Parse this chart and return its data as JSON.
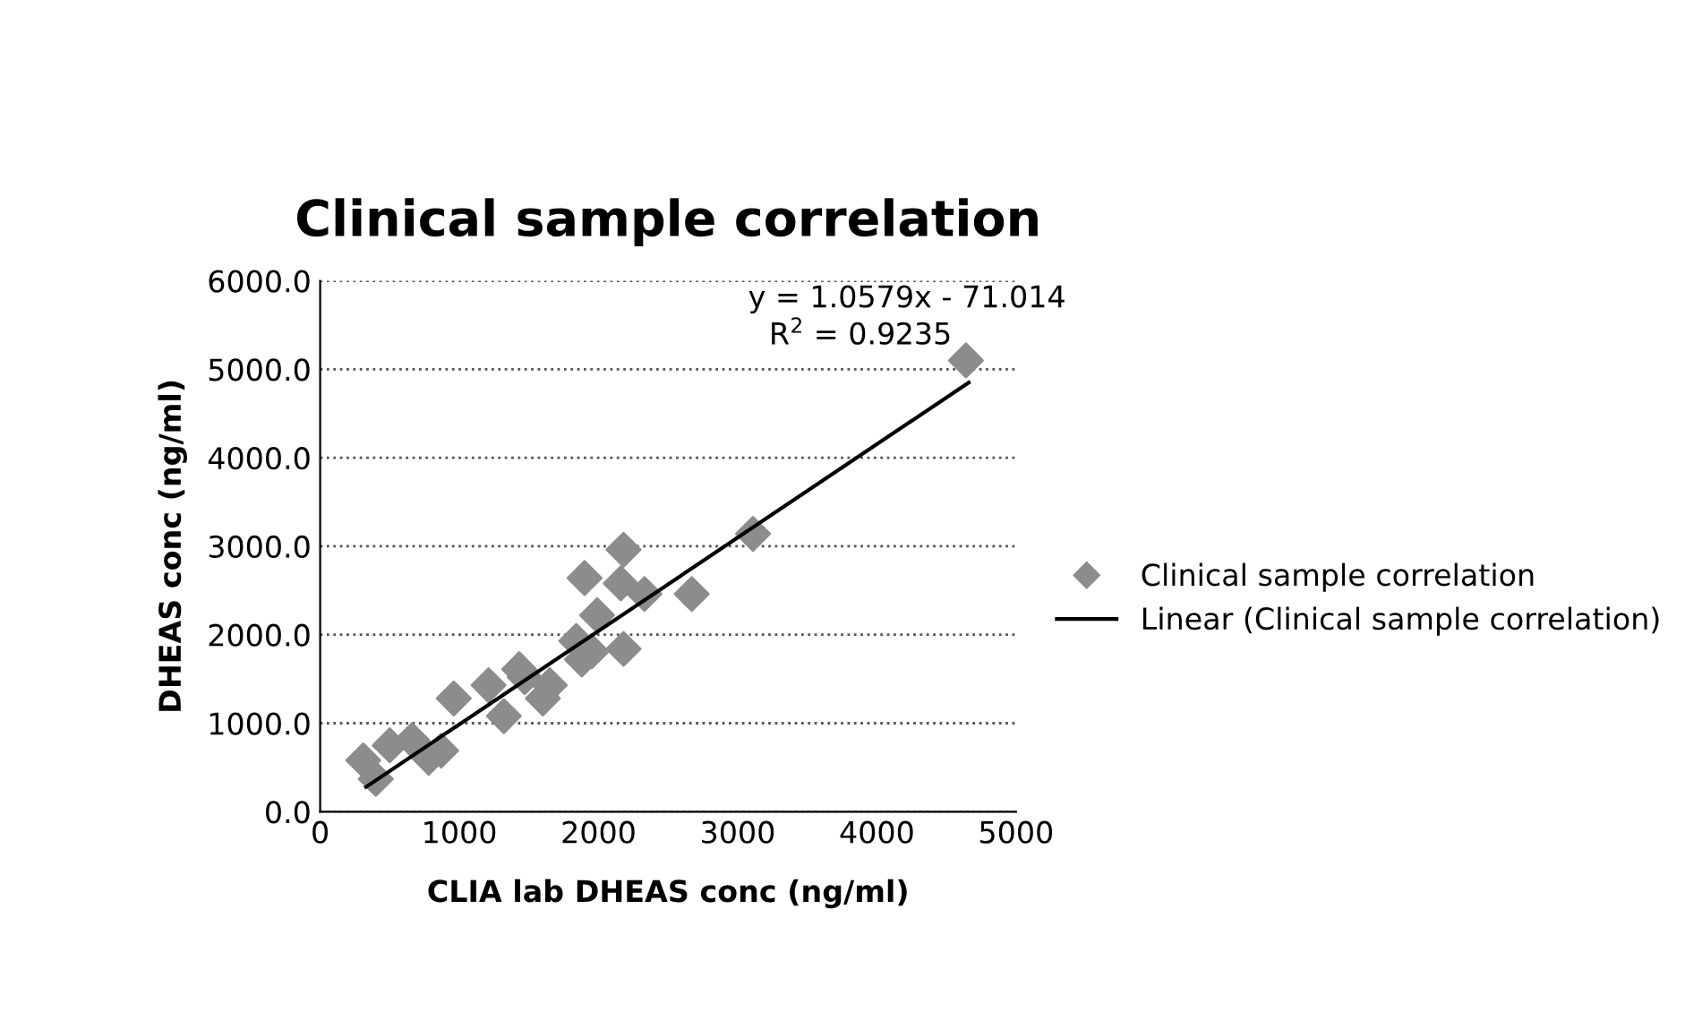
{
  "chart_data": {
    "type": "scatter",
    "title": "Clinical sample correlation",
    "xlabel": "CLIA lab DHEAS conc (ng/ml)",
    "ylabel": "DHEAS conc (ng/ml)",
    "annotations": [
      "y = 1.0579x - 71.014",
      "R$^{2}$ = 0.9235"
    ],
    "xlim": [
      0,
      5000
    ],
    "xticks": [
      0,
      1000,
      2000,
      3000,
      4000,
      5000
    ],
    "ylim": [
      0,
      6000
    ],
    "yticks": [
      {
        "value": 0,
        "label": "0.0"
      },
      {
        "value": 1000,
        "label": "1000.0"
      },
      {
        "value": 2000,
        "label": "2000.0"
      },
      {
        "value": 3000,
        "label": "3000.0"
      },
      {
        "value": 4000,
        "label": "4000.0"
      },
      {
        "value": 5000,
        "label": "5000.0"
      },
      {
        "value": 6000,
        "label": "6000.0"
      }
    ],
    "grid": "y",
    "legend": "right",
    "series": [
      {
        "name": "Clinical sample correlation",
        "marker": "diamond",
        "color": "#8c8c8c",
        "x": [
          4640,
          3110,
          2180,
          1900,
          2160,
          2330,
          2670,
          1990,
          1840,
          1950,
          2180,
          1880,
          1430,
          1210,
          1650,
          1600,
          960,
          1320,
          660,
          870,
          500,
          310,
          400,
          780,
          1470
        ],
        "values": [
          5100,
          3140,
          2960,
          2640,
          2580,
          2460,
          2460,
          2220,
          1930,
          1810,
          1840,
          1720,
          1610,
          1430,
          1430,
          1280,
          1280,
          1080,
          810,
          690,
          750,
          580,
          370,
          610,
          1520
        ]
      },
      {
        "name": "Linear (Clinical sample correlation)",
        "type": "line",
        "marker": "none",
        "color": "#000000",
        "line_style": "solid",
        "x": [
          330,
          4660
        ],
        "values": [
          280,
          4850
        ]
      }
    ]
  }
}
